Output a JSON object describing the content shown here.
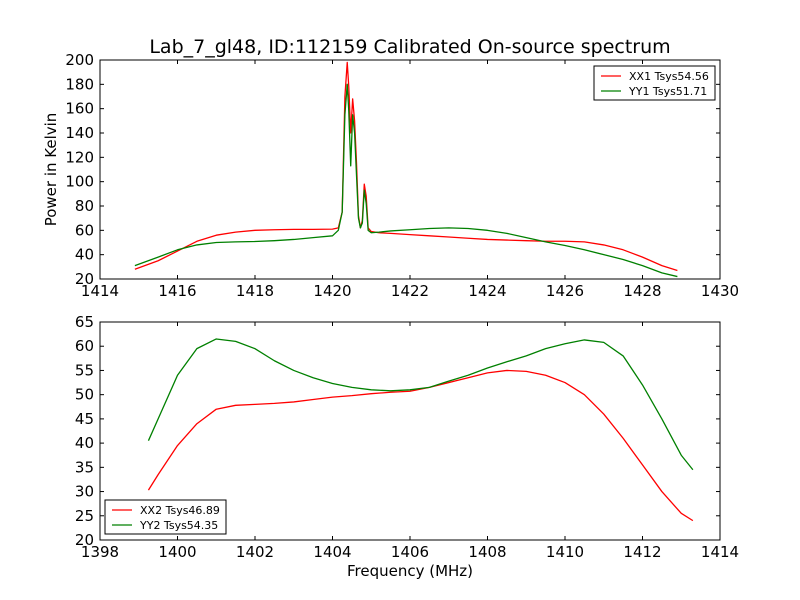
{
  "chart_data": [
    {
      "type": "line",
      "title": "Lab_7_gl48, ID:112159 Calibrated On-source spectrum",
      "xlabel": "",
      "ylabel": "Power in Kelvin",
      "xlim": [
        1414,
        1430
      ],
      "ylim": [
        20,
        200
      ],
      "xticks": [
        1414,
        1416,
        1418,
        1420,
        1422,
        1424,
        1426,
        1428,
        1430
      ],
      "yticks": [
        20,
        40,
        60,
        80,
        100,
        120,
        140,
        160,
        180,
        200
      ],
      "legend_position": "upper-right",
      "grid": false,
      "series": [
        {
          "name": "XX1 Tsys54.56",
          "color": "#ff0000",
          "x": [
            1414.9,
            1415.5,
            1416.0,
            1416.5,
            1417.0,
            1417.5,
            1418.0,
            1418.5,
            1419.0,
            1419.5,
            1420.0,
            1420.15,
            1420.25,
            1420.32,
            1420.38,
            1420.42,
            1420.47,
            1420.52,
            1420.57,
            1420.62,
            1420.67,
            1420.72,
            1420.77,
            1420.82,
            1420.87,
            1420.92,
            1421.0,
            1421.2,
            1421.5,
            1422.0,
            1422.5,
            1423.0,
            1423.5,
            1424.0,
            1424.5,
            1425.0,
            1425.5,
            1426.0,
            1426.5,
            1427.0,
            1427.5,
            1428.0,
            1428.5,
            1428.9
          ],
          "values": [
            28,
            35,
            43,
            51,
            56,
            58.5,
            60,
            60.5,
            60.8,
            60.8,
            61,
            62,
            75,
            170,
            198,
            178,
            140,
            168,
            150,
            115,
            72,
            62,
            68,
            98,
            88,
            62,
            59,
            58,
            57.5,
            56.5,
            55.5,
            54.5,
            53.5,
            52.5,
            52,
            51.5,
            51,
            51,
            50.5,
            48,
            44,
            38,
            31,
            27
          ]
        },
        {
          "name": "YY1 Tsys51.71",
          "color": "#008000",
          "x": [
            1414.9,
            1415.5,
            1416.0,
            1416.5,
            1417.0,
            1417.5,
            1418.0,
            1418.5,
            1419.0,
            1419.5,
            1420.0,
            1420.15,
            1420.25,
            1420.32,
            1420.38,
            1420.42,
            1420.47,
            1420.52,
            1420.57,
            1420.62,
            1420.67,
            1420.72,
            1420.77,
            1420.82,
            1420.87,
            1420.92,
            1421.0,
            1421.2,
            1421.5,
            1422.0,
            1422.5,
            1423.0,
            1423.5,
            1424.0,
            1424.5,
            1425.0,
            1425.5,
            1426.0,
            1426.5,
            1427.0,
            1427.5,
            1428.0,
            1428.5,
            1428.9
          ],
          "values": [
            31,
            38,
            44,
            48,
            50,
            50.5,
            50.8,
            51.5,
            52.5,
            54,
            55.5,
            60,
            75,
            155,
            180,
            158,
            113,
            155,
            140,
            105,
            70,
            62,
            66,
            93,
            82,
            60,
            58,
            58.5,
            59.5,
            60.5,
            61.5,
            62,
            61.5,
            60,
            57.5,
            54,
            50.5,
            47.5,
            44,
            40,
            36,
            31,
            25,
            22
          ]
        }
      ]
    },
    {
      "type": "line",
      "title": "",
      "xlabel": "Frequency (MHz)",
      "ylabel": "",
      "xlim": [
        1398,
        1414
      ],
      "ylim": [
        20,
        65
      ],
      "xticks": [
        1398,
        1400,
        1402,
        1404,
        1406,
        1408,
        1410,
        1412,
        1414
      ],
      "yticks": [
        20,
        25,
        30,
        35,
        40,
        45,
        50,
        55,
        60,
        65
      ],
      "legend_position": "lower-left",
      "grid": false,
      "series": [
        {
          "name": "XX2 Tsys46.89",
          "color": "#ff0000",
          "x": [
            1399.25,
            1399.5,
            1400.0,
            1400.5,
            1401.0,
            1401.5,
            1402.0,
            1402.5,
            1403.0,
            1403.5,
            1404.0,
            1404.5,
            1405.0,
            1405.5,
            1406.0,
            1406.5,
            1407.0,
            1407.5,
            1408.0,
            1408.5,
            1409.0,
            1409.5,
            1410.0,
            1410.5,
            1411.0,
            1411.5,
            1412.0,
            1412.5,
            1413.0,
            1413.3
          ],
          "values": [
            30.3,
            33.5,
            39.5,
            44,
            47,
            47.8,
            48,
            48.2,
            48.5,
            49,
            49.5,
            49.8,
            50.2,
            50.5,
            50.7,
            51.5,
            52.5,
            53.5,
            54.5,
            55,
            54.8,
            54,
            52.5,
            50,
            46,
            41,
            35.5,
            30,
            25.5,
            24
          ]
        },
        {
          "name": "YY2 Tsys54.35",
          "color": "#008000",
          "x": [
            1399.25,
            1399.5,
            1400.0,
            1400.5,
            1401.0,
            1401.5,
            1402.0,
            1402.5,
            1403.0,
            1403.5,
            1404.0,
            1404.5,
            1405.0,
            1405.5,
            1406.0,
            1406.5,
            1407.0,
            1407.5,
            1408.0,
            1408.5,
            1409.0,
            1409.5,
            1410.0,
            1410.5,
            1411.0,
            1411.5,
            1412.0,
            1412.5,
            1413.0,
            1413.3
          ],
          "values": [
            40.5,
            45,
            54,
            59.5,
            61.5,
            61,
            59.5,
            57,
            55,
            53.5,
            52.3,
            51.5,
            51,
            50.8,
            51,
            51.5,
            52.8,
            54,
            55.5,
            56.8,
            58,
            59.5,
            60.5,
            61.3,
            60.8,
            58,
            52,
            45,
            37.5,
            34.5
          ]
        }
      ]
    }
  ]
}
